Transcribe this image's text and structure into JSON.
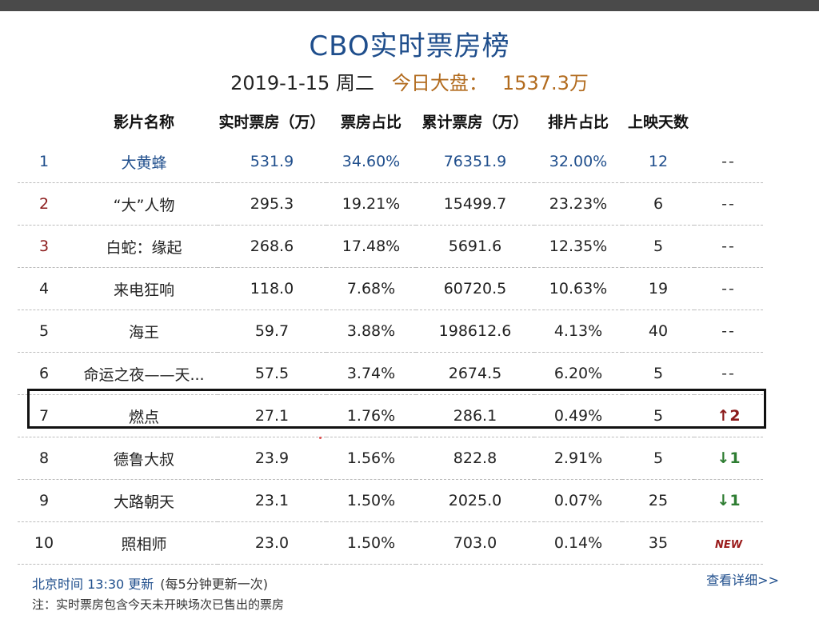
{
  "header": {
    "title": "CBO实时票房榜",
    "date": "2019-1-15 周二",
    "market_label": "今日大盘：",
    "market_value": "1537.3万"
  },
  "columns": [
    "影片名称",
    "实时票房（万）",
    "票房占比",
    "累计票房（万）",
    "排片占比",
    "上映天数"
  ],
  "rows": [
    {
      "rank": "1",
      "name": "大黄蜂",
      "realtime": "531.9",
      "share": "34.60%",
      "total": "76351.9",
      "schedule": "32.00%",
      "days": "12",
      "trend": "--"
    },
    {
      "rank": "2",
      "name": "“大”人物",
      "realtime": "295.3",
      "share": "19.21%",
      "total": "15499.7",
      "schedule": "23.23%",
      "days": "6",
      "trend": "--"
    },
    {
      "rank": "3",
      "name": "白蛇：缘起",
      "realtime": "268.6",
      "share": "17.48%",
      "total": "5691.6",
      "schedule": "12.35%",
      "days": "5",
      "trend": "--"
    },
    {
      "rank": "4",
      "name": "来电狂响",
      "realtime": "118.0",
      "share": "7.68%",
      "total": "60720.5",
      "schedule": "10.63%",
      "days": "19",
      "trend": "--"
    },
    {
      "rank": "5",
      "name": "海王",
      "realtime": "59.7",
      "share": "3.88%",
      "total": "198612.6",
      "schedule": "4.13%",
      "days": "40",
      "trend": "--"
    },
    {
      "rank": "6",
      "name": "命运之夜——天...",
      "realtime": "57.5",
      "share": "3.74%",
      "total": "2674.5",
      "schedule": "6.20%",
      "days": "5",
      "trend": "--"
    },
    {
      "rank": "7",
      "name": "燃点",
      "realtime": "27.1",
      "share": "1.76%",
      "total": "286.1",
      "schedule": "0.49%",
      "days": "5",
      "trend_icon": "↑",
      "trend": "2"
    },
    {
      "rank": "8",
      "name": "德鲁大叔",
      "realtime": "23.9",
      "share": "1.56%",
      "total": "822.8",
      "schedule": "2.91%",
      "days": "5",
      "trend_icon": "↓",
      "trend": "1"
    },
    {
      "rank": "9",
      "name": "大路朝天",
      "realtime": "23.1",
      "share": "1.50%",
      "total": "2025.0",
      "schedule": "0.07%",
      "days": "25",
      "trend_icon": "↓",
      "trend": "1"
    },
    {
      "rank": "10",
      "name": "照相师",
      "realtime": "23.0",
      "share": "1.50%",
      "total": "703.0",
      "schedule": "0.14%",
      "days": "35",
      "trend": "NEW"
    }
  ],
  "footer": {
    "update_time": "北京时间 13:30 更新",
    "interval": "(每5分钟更新一次)",
    "more_link": "查看详细>>",
    "note": "注：实时票房包含今天未开映场次已售出的票房"
  }
}
